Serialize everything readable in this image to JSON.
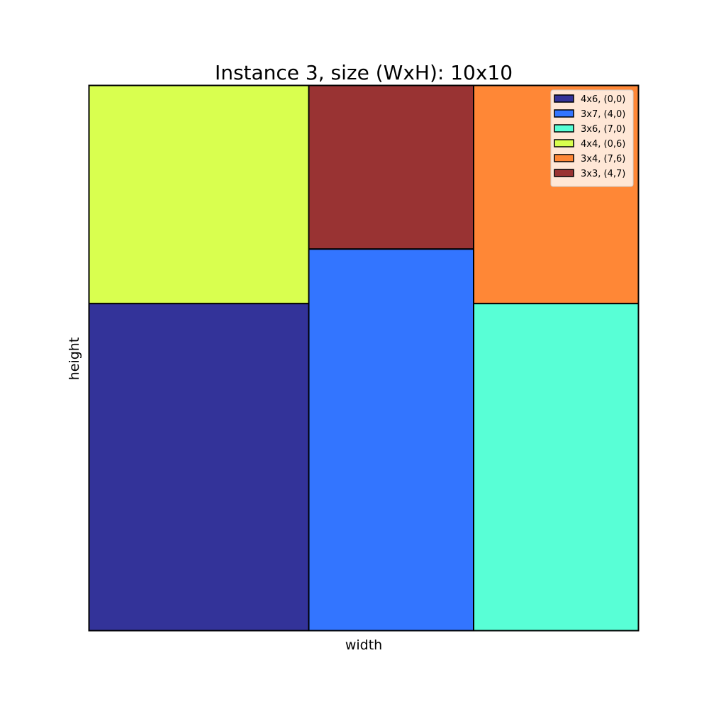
{
  "chart_data": {
    "type": "rectangle-packing",
    "title": "Instance 3, size (WxH): 10x10",
    "xlabel": "width",
    "ylabel": "height",
    "xlim": [
      0,
      10
    ],
    "ylim": [
      0,
      10
    ],
    "grid": false,
    "ticks_visible": false,
    "legend_position": "top-right",
    "rectangles": [
      {
        "label": "4x6, (0,0)",
        "x": 0,
        "y": 0,
        "w": 4,
        "h": 6,
        "color": "#333399"
      },
      {
        "label": "3x7, (4,0)",
        "x": 4,
        "y": 0,
        "w": 3,
        "h": 7,
        "color": "#3375FF"
      },
      {
        "label": "3x6, (7,0)",
        "x": 7,
        "y": 0,
        "w": 3,
        "h": 6,
        "color": "#58FFD6"
      },
      {
        "label": "4x4, (0,6)",
        "x": 0,
        "y": 6,
        "w": 4,
        "h": 4,
        "color": "#D9FF4F"
      },
      {
        "label": "3x4, (7,6)",
        "x": 7,
        "y": 6,
        "w": 3,
        "h": 4,
        "color": "#FF8736"
      },
      {
        "label": "3x3, (4,7)",
        "x": 4,
        "y": 7,
        "w": 3,
        "h": 3,
        "color": "#993333"
      }
    ]
  }
}
